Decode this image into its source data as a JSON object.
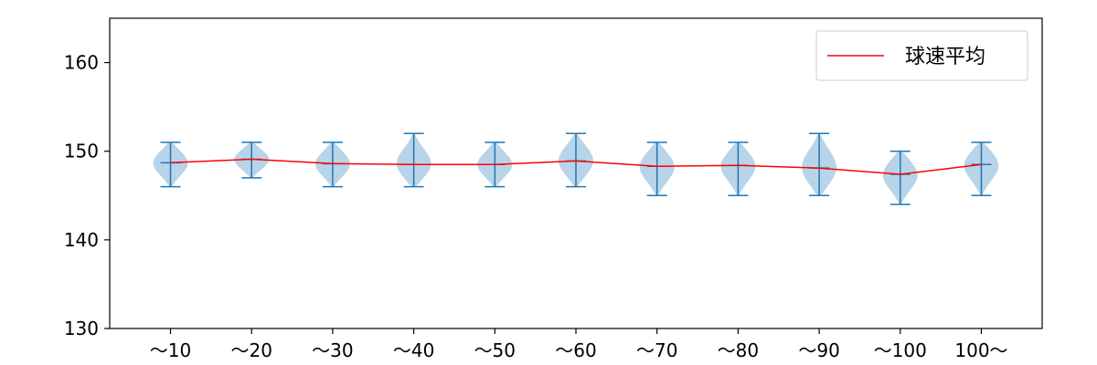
{
  "chart_data": {
    "type": "violin",
    "title": "",
    "xlabel": "",
    "ylabel": "",
    "categories": [
      "～10",
      "～20",
      "～30",
      "～40",
      "～50",
      "～60",
      "～70",
      "～80",
      "～90",
      "～100",
      "100～"
    ],
    "ylim": [
      130,
      165
    ],
    "yticks": [
      130,
      140,
      150,
      160
    ],
    "grid": false,
    "legend": {
      "position": "top-right",
      "entries": [
        "球速平均"
      ]
    },
    "series": [
      {
        "name": "球速平均",
        "kind": "line",
        "color": "#ff0000",
        "values": [
          148.7,
          149.1,
          148.6,
          148.5,
          148.5,
          148.9,
          148.3,
          148.4,
          148.1,
          147.4,
          148.5
        ]
      }
    ],
    "violins": {
      "fill_color": "#b8d4e8",
      "line_color": "#1f77b4",
      "min": [
        146,
        147,
        146,
        146,
        146,
        146,
        145,
        145,
        145,
        144,
        145
      ],
      "max": [
        151,
        151,
        151,
        152,
        151,
        152,
        151,
        151,
        152,
        150,
        151
      ],
      "mean": [
        148.7,
        149.1,
        148.6,
        148.5,
        148.5,
        148.9,
        148.3,
        148.4,
        148.1,
        147.4,
        148.5
      ]
    }
  }
}
